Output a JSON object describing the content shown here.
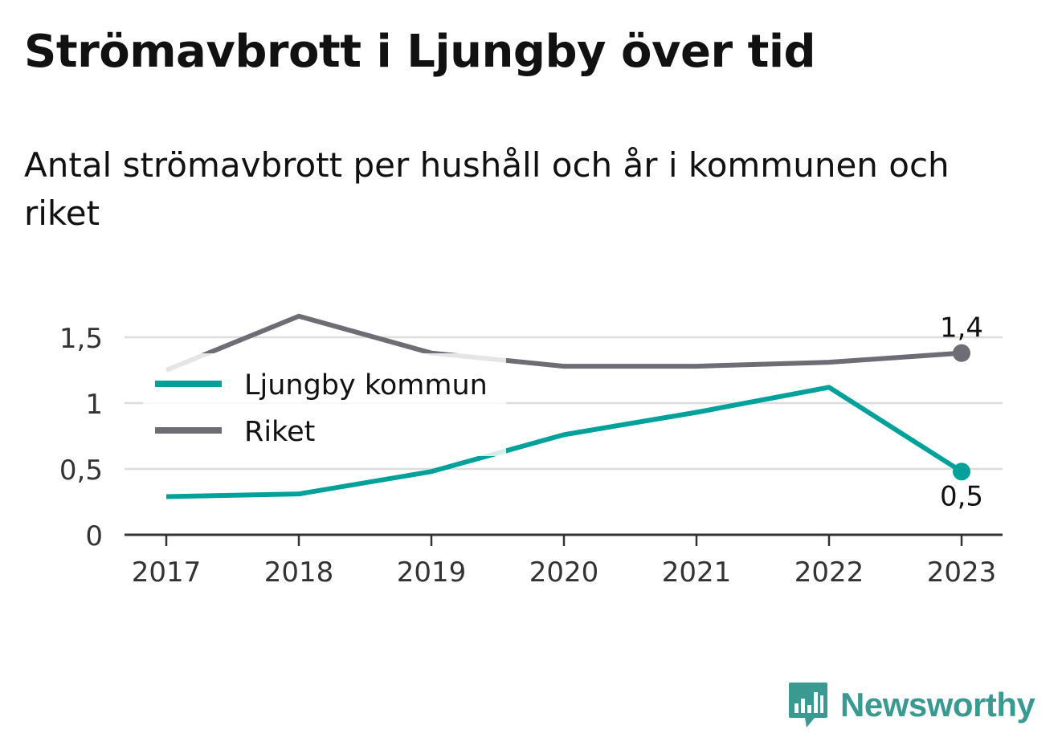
{
  "title": "Strömavbrott i Ljungby över tid",
  "subtitle": "Antal strömavbrott per hushåll och år i kommunen och riket",
  "brand": {
    "name": "Newsworthy",
    "logo_icon": "bar-chart-badge-icon",
    "color": "#3a9a92"
  },
  "chart_data": {
    "type": "line",
    "x": [
      "2017",
      "2018",
      "2019",
      "2020",
      "2021",
      "2022",
      "2023"
    ],
    "series": [
      {
        "name": "Ljungby kommun",
        "color": "#00a19a",
        "values": [
          0.29,
          0.31,
          0.48,
          0.76,
          0.93,
          1.12,
          0.48
        ],
        "end_label": "0,5"
      },
      {
        "name": "Riket",
        "color": "#6e6d75",
        "values": [
          1.25,
          1.66,
          1.38,
          1.28,
          1.28,
          1.31,
          1.38
        ],
        "end_label": "1,4"
      }
    ],
    "yticks": [
      0,
      0.5,
      1,
      1.5
    ],
    "ytick_labels": [
      "0",
      "0,5",
      "1",
      "1,5"
    ],
    "ylim": [
      0,
      1.7
    ],
    "grid": true,
    "legend": "top-left"
  }
}
